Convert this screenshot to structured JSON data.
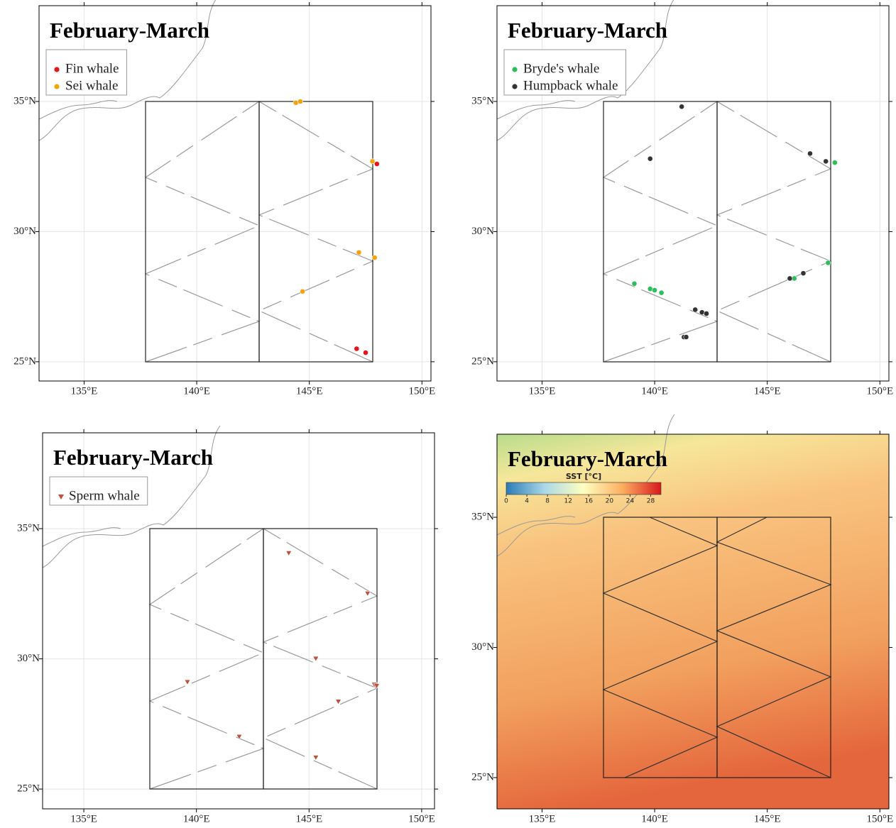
{
  "chart_data": [
    {
      "type": "scatter",
      "title": "February-March",
      "xlim": [
        133.0,
        150.4
      ],
      "ylim": [
        24.26,
        38.68
      ],
      "xticks": [
        {
          "value": 135,
          "label": "135°E"
        },
        {
          "value": 140,
          "label": "140°E"
        },
        {
          "value": 145,
          "label": "145°E"
        },
        {
          "value": 150,
          "label": "150°E"
        }
      ],
      "yticks": [
        {
          "value": 25,
          "label": "25°N"
        },
        {
          "value": 30,
          "label": "30°N"
        },
        {
          "value": 35,
          "label": "35°N"
        }
      ],
      "grid": true,
      "legend": "upper left",
      "series": [
        {
          "name": "Fin whale",
          "color": "#e8141c",
          "marker": "circle",
          "x": [
            148.0,
            147.1,
            147.5
          ],
          "y": [
            32.6,
            25.5,
            25.35
          ]
        },
        {
          "name": "Sei whale",
          "color": "#f5a20f",
          "marker": "circle",
          "x": [
            144.4,
            144.6,
            147.8,
            147.2,
            147.9,
            144.7
          ],
          "y": [
            34.95,
            35.0,
            32.7,
            29.2,
            29.0,
            27.7
          ]
        }
      ]
    },
    {
      "type": "scatter",
      "title": "February-March",
      "xlim": [
        133.0,
        150.4
      ],
      "ylim": [
        24.26,
        38.68
      ],
      "xticks": [
        {
          "value": 135,
          "label": "135°E"
        },
        {
          "value": 140,
          "label": "140°E"
        },
        {
          "value": 145,
          "label": "145°E"
        },
        {
          "value": 150,
          "label": "150°E"
        }
      ],
      "yticks": [
        {
          "value": 25,
          "label": "25°N"
        },
        {
          "value": 30,
          "label": "30°N"
        },
        {
          "value": 35,
          "label": "35°N"
        }
      ],
      "grid": true,
      "legend": "upper left",
      "series": [
        {
          "name": "Bryde's whale",
          "color": "#2dbd5a",
          "marker": "circle",
          "x": [
            148.0,
            147.7,
            146.2,
            139.1,
            139.8,
            140.0,
            140.3
          ],
          "y": [
            32.65,
            28.8,
            28.2,
            28.0,
            27.8,
            27.75,
            27.65
          ]
        },
        {
          "name": "Humpback whale",
          "color": "#333333",
          "marker": "circle",
          "x": [
            141.2,
            139.8,
            146.9,
            147.6,
            146.6,
            146.0,
            141.8,
            142.1,
            142.3,
            141.3,
            141.4
          ],
          "y": [
            34.8,
            32.8,
            33.0,
            32.7,
            28.4,
            28.2,
            27.0,
            26.9,
            26.85,
            25.95,
            25.95
          ]
        }
      ]
    },
    {
      "type": "scatter",
      "title": "February-March",
      "xlim": [
        133.17,
        150.57
      ],
      "ylim": [
        24.24,
        38.68
      ],
      "xticks": [
        {
          "value": 135,
          "label": "135°E"
        },
        {
          "value": 140,
          "label": "140°E"
        },
        {
          "value": 145,
          "label": "145°E"
        },
        {
          "value": 150,
          "label": "150°E"
        }
      ],
      "yticks": [
        {
          "value": 25,
          "label": "25°N"
        },
        {
          "value": 30,
          "label": "30°N"
        },
        {
          "value": 35,
          "label": "35°N"
        }
      ],
      "grid": true,
      "legend": "upper left",
      "series": [
        {
          "name": "Sperm whale",
          "color": "#c0503c",
          "marker": "triangle",
          "x": [
            144.1,
            147.6,
            145.3,
            147.9,
            148.0,
            146.3,
            145.3,
            139.6,
            141.9
          ],
          "y": [
            34.05,
            32.5,
            30.0,
            29.0,
            28.95,
            28.35,
            26.2,
            29.1,
            27.0
          ]
        }
      ]
    },
    {
      "type": "map",
      "title": "February-March",
      "xlim": [
        133.0,
        150.4
      ],
      "ylim": [
        23.8,
        38.19
      ],
      "xticks": [
        {
          "value": 135,
          "label": "135°E"
        },
        {
          "value": 140,
          "label": "140°E"
        },
        {
          "value": 145,
          "label": "145°E"
        },
        {
          "value": 150,
          "label": "150°E"
        }
      ],
      "yticks": [
        {
          "value": 25,
          "label": "25°N"
        },
        {
          "value": 30,
          "label": "30°N"
        },
        {
          "value": 35,
          "label": "35°N"
        }
      ],
      "grid": false,
      "colorbar": {
        "label": "SST [°C]",
        "lim": [
          0,
          30
        ],
        "ticks": [
          0,
          4,
          8,
          12,
          16,
          20,
          24,
          28
        ],
        "colors": [
          "#2c7bb6",
          "#abd9e9",
          "#ffffbf",
          "#fdae61",
          "#d7191c"
        ]
      }
    }
  ]
}
